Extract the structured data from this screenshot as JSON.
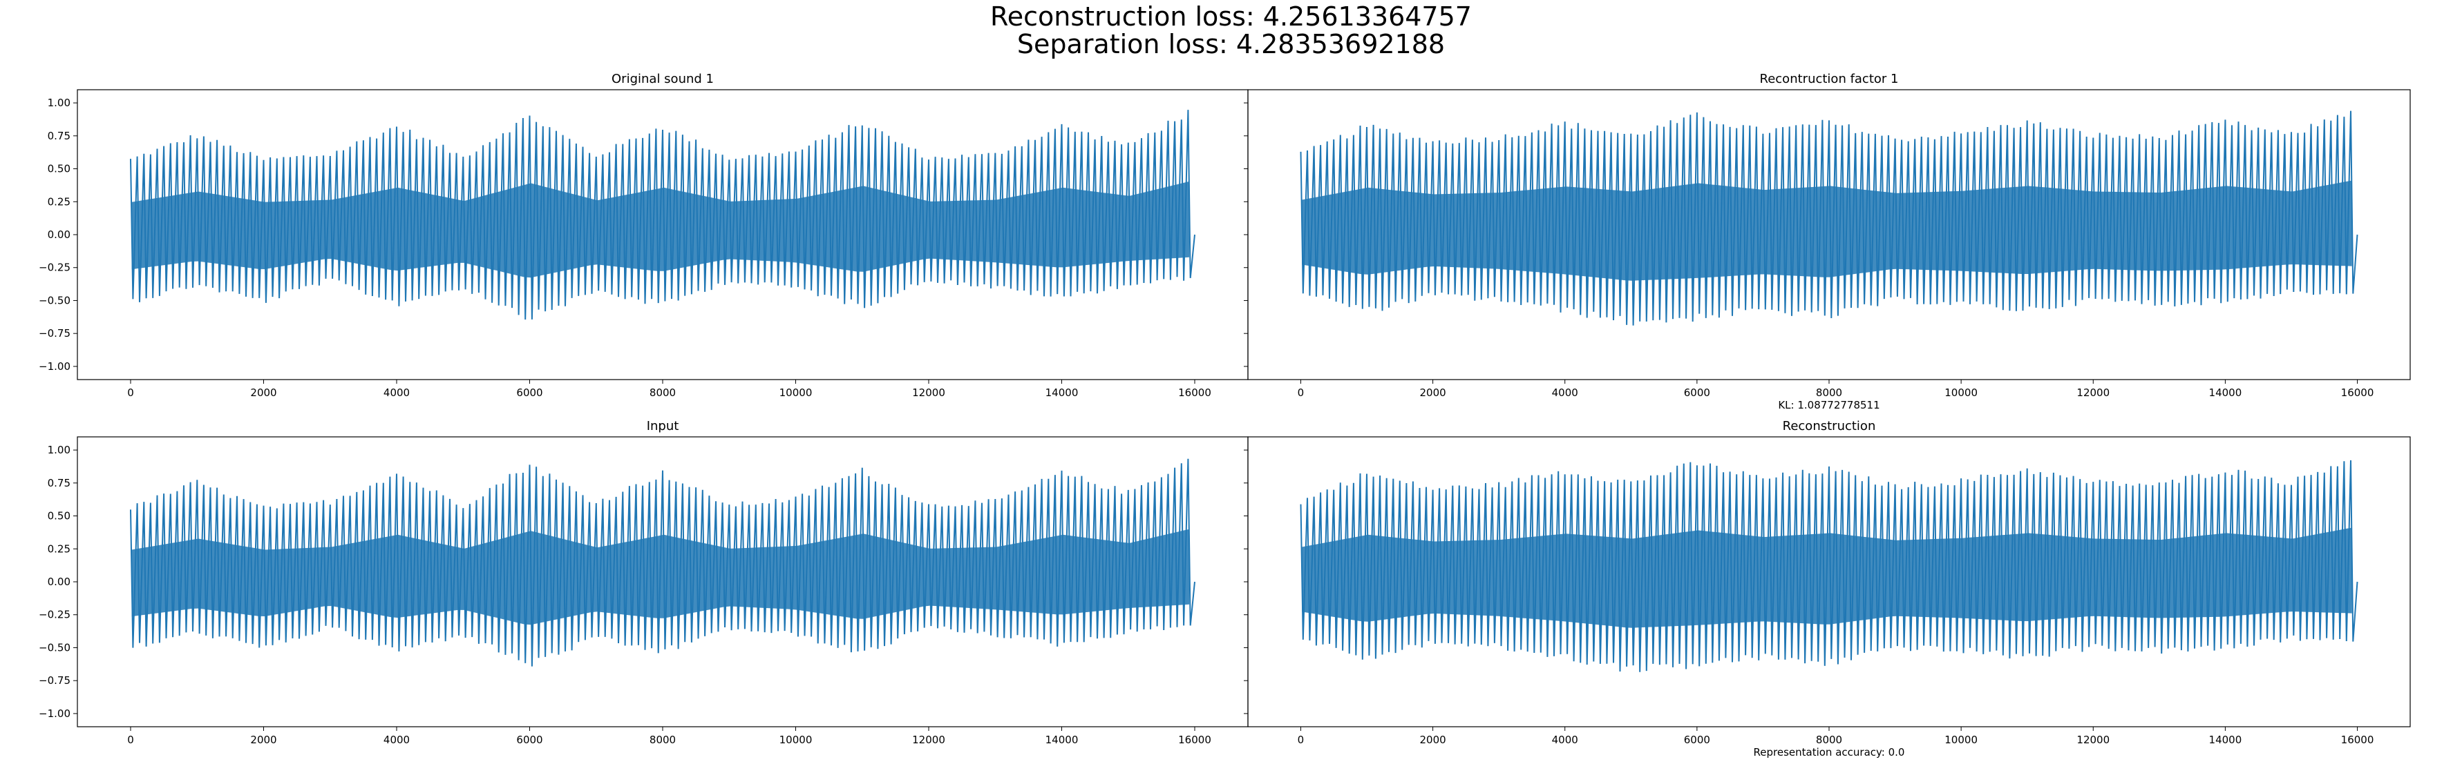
{
  "figure": {
    "suptitle_line1": "Reconstruction loss: 4.25613364757",
    "suptitle_line2": "Separation loss: 4.28353692188"
  },
  "chart_data": [
    {
      "type": "line",
      "title": "Original sound 1",
      "xlabel": "",
      "ylabel": "",
      "note": "",
      "xlim": [
        -800,
        16800
      ],
      "ylim": [
        -1.1,
        1.1
      ],
      "xticks": [
        0,
        2000,
        4000,
        6000,
        8000,
        10000,
        12000,
        14000,
        16000
      ],
      "yticks": [
        -1.0,
        -0.75,
        -0.5,
        -0.25,
        0.0,
        0.25,
        0.5,
        0.75,
        1.0
      ],
      "ytick_labels": [
        "−1.00",
        "−0.75",
        "−0.50",
        "−0.25",
        "0.00",
        "0.25",
        "0.50",
        "0.75",
        "1.00"
      ],
      "grid": false,
      "series": [
        {
          "color": "#1f77b4",
          "x": [
            0,
            1000,
            2000,
            3000,
            4000,
            5000,
            6000,
            7000,
            8000,
            9000,
            10000,
            11000,
            12000,
            13000,
            14000,
            15000,
            16000
          ],
          "upper": [
            0.59,
            0.78,
            0.59,
            0.63,
            0.85,
            0.61,
            0.93,
            0.62,
            0.85,
            0.6,
            0.65,
            0.88,
            0.6,
            0.63,
            0.85,
            0.7,
            0.99
          ],
          "lower": [
            -0.53,
            -0.4,
            -0.53,
            -0.36,
            -0.55,
            -0.42,
            -0.66,
            -0.45,
            -0.56,
            -0.37,
            -0.42,
            -0.57,
            -0.36,
            -0.42,
            -0.5,
            -0.4,
            -0.34
          ]
        }
      ]
    },
    {
      "type": "line",
      "title": "Recontruction factor 1",
      "xlabel": "",
      "ylabel": "",
      "note": "KL: 1.08772778511",
      "xlim": [
        -800,
        16800
      ],
      "ylim": [
        -1.1,
        1.1
      ],
      "xticks": [
        0,
        2000,
        4000,
        6000,
        8000,
        10000,
        12000,
        14000,
        16000
      ],
      "grid": false,
      "series": [
        {
          "color": "#1f77b4",
          "x": [
            0,
            1000,
            2000,
            3000,
            4000,
            5000,
            6000,
            7000,
            8000,
            9000,
            10000,
            11000,
            12000,
            13000,
            14000,
            15000,
            16000
          ],
          "upper": [
            0.63,
            0.85,
            0.73,
            0.76,
            0.87,
            0.78,
            0.93,
            0.81,
            0.88,
            0.75,
            0.79,
            0.88,
            0.78,
            0.76,
            0.88,
            0.78,
            1.0
          ],
          "lower": [
            -0.45,
            -0.61,
            -0.48,
            -0.52,
            -0.6,
            -0.7,
            -0.66,
            -0.6,
            -0.65,
            -0.52,
            -0.55,
            -0.6,
            -0.52,
            -0.55,
            -0.53,
            -0.45,
            -0.48
          ]
        }
      ]
    },
    {
      "type": "line",
      "title": "Input",
      "xlabel": "",
      "ylabel": "",
      "note": "",
      "xlim": [
        -800,
        16800
      ],
      "ylim": [
        -1.1,
        1.1
      ],
      "xticks": [
        0,
        2000,
        4000,
        6000,
        8000,
        10000,
        12000,
        14000,
        16000
      ],
      "yticks": [
        -1.0,
        -0.75,
        -0.5,
        -0.25,
        0.0,
        0.25,
        0.5,
        0.75,
        1.0
      ],
      "ytick_labels": [
        "−1.00",
        "−0.75",
        "−0.50",
        "−0.25",
        "0.00",
        "0.25",
        "0.50",
        "0.75",
        "1.00"
      ],
      "grid": false,
      "series": [
        {
          "color": "#1f77b4",
          "x": [
            0,
            1000,
            2000,
            3000,
            4000,
            5000,
            6000,
            7000,
            8000,
            9000,
            10000,
            11000,
            12000,
            13000,
            14000,
            15000,
            16000
          ],
          "upper": [
            0.58,
            0.78,
            0.58,
            0.63,
            0.85,
            0.6,
            0.92,
            0.62,
            0.85,
            0.6,
            0.65,
            0.87,
            0.6,
            0.63,
            0.85,
            0.7,
            0.98
          ],
          "lower": [
            -0.53,
            -0.4,
            -0.53,
            -0.36,
            -0.55,
            -0.42,
            -0.66,
            -0.45,
            -0.56,
            -0.37,
            -0.42,
            -0.57,
            -0.36,
            -0.42,
            -0.5,
            -0.4,
            -0.34
          ]
        }
      ]
    },
    {
      "type": "line",
      "title": "Reconstruction",
      "xlabel": "",
      "ylabel": "",
      "note": "Representation accuracy: 0.0",
      "xlim": [
        -800,
        16800
      ],
      "ylim": [
        -1.1,
        1.1
      ],
      "xticks": [
        0,
        2000,
        4000,
        6000,
        8000,
        10000,
        12000,
        14000,
        16000
      ],
      "grid": false,
      "series": [
        {
          "color": "#1f77b4",
          "x": [
            0,
            1000,
            2000,
            3000,
            4000,
            5000,
            6000,
            7000,
            8000,
            9000,
            10000,
            11000,
            12000,
            13000,
            14000,
            15000,
            16000
          ],
          "upper": [
            0.63,
            0.85,
            0.73,
            0.76,
            0.87,
            0.78,
            0.93,
            0.81,
            0.88,
            0.75,
            0.79,
            0.88,
            0.78,
            0.76,
            0.88,
            0.78,
            1.0
          ],
          "lower": [
            -0.45,
            -0.61,
            -0.48,
            -0.52,
            -0.6,
            -0.7,
            -0.66,
            -0.6,
            -0.65,
            -0.52,
            -0.55,
            -0.6,
            -0.52,
            -0.55,
            -0.53,
            -0.45,
            -0.48
          ]
        }
      ]
    }
  ]
}
